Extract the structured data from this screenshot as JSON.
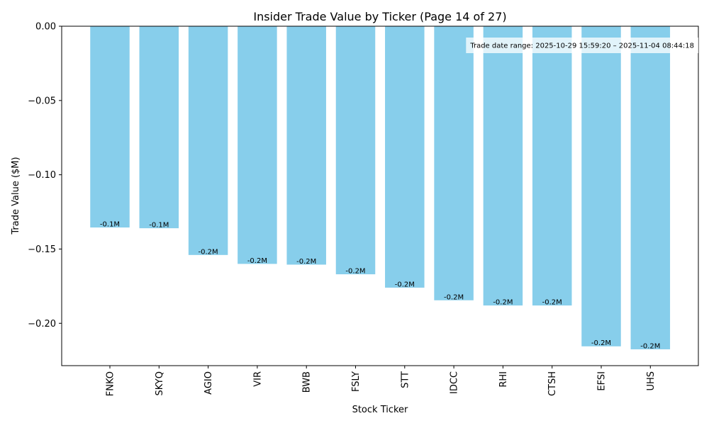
{
  "chart_data": {
    "type": "bar",
    "title": "Insider Trade Value by Ticker (Page 14 of 27)",
    "xlabel": "Stock Ticker",
    "ylabel": "Trade Value ($M)",
    "categories": [
      "FNKO",
      "SKYQ",
      "AGIO",
      "VIR",
      "BWB",
      "FSLY",
      "STT",
      "IDCC",
      "RHI",
      "CTSH",
      "EFSI",
      "UHS"
    ],
    "values": [
      -0.1355,
      -0.136,
      -0.154,
      -0.16,
      -0.1605,
      -0.167,
      -0.176,
      -0.1845,
      -0.188,
      -0.188,
      -0.2155,
      -0.2175
    ],
    "data_labels": [
      "-0.1M",
      "-0.1M",
      "-0.2M",
      "-0.2M",
      "-0.2M",
      "-0.2M",
      "-0.2M",
      "-0.2M",
      "-0.2M",
      "-0.2M",
      "-0.2M",
      "-0.2M"
    ],
    "ylim": [
      -0.2285,
      0.0
    ],
    "yticks": [
      0.0,
      -0.05,
      -0.1,
      -0.15,
      -0.2
    ],
    "ytick_labels": [
      "0.00",
      "−0.05",
      "−0.10",
      "−0.15",
      "−0.20"
    ],
    "bar_color": "#87ceeb",
    "grid": false,
    "annotation": "Trade date range: 2025-10-29 15:59:20 – 2025-11-04 08:44:18"
  }
}
